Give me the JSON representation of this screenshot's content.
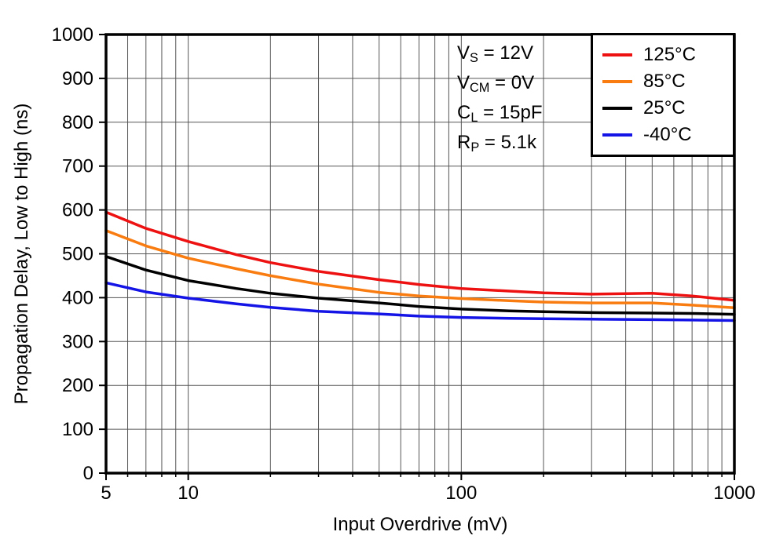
{
  "chart_data": {
    "type": "line",
    "xlabel": "Input Overdrive (mV)",
    "ylabel": "Propagation Delay, Low to High (ns)",
    "x_scale": "log",
    "xlim": [
      5,
      1000
    ],
    "ylim": [
      0,
      1000
    ],
    "y_ticks": [
      0,
      100,
      200,
      300,
      400,
      500,
      600,
      700,
      800,
      900,
      1000
    ],
    "x_major_ticks": [
      5,
      10,
      100,
      1000
    ],
    "x_tick_labels": [
      "5",
      "10",
      "100",
      "1000"
    ],
    "grid": true,
    "legend_position": "top-right",
    "x": [
      5,
      7,
      10,
      15,
      20,
      30,
      50,
      70,
      100,
      150,
      200,
      300,
      500,
      700,
      1000
    ],
    "series": [
      {
        "name": "125°C",
        "color": "#ee1111",
        "values": [
          595,
          558,
          528,
          498,
          480,
          460,
          441,
          430,
          421,
          415,
          411,
          408,
          410,
          404,
          394
        ]
      },
      {
        "name": "85°C",
        "color": "#f97c11",
        "values": [
          553,
          518,
          490,
          466,
          450,
          431,
          412,
          404,
          398,
          393,
          390,
          388,
          388,
          383,
          377
        ]
      },
      {
        "name": "25°C",
        "color": "#000000",
        "values": [
          494,
          463,
          439,
          421,
          410,
          399,
          388,
          380,
          374,
          370,
          368,
          366,
          365,
          364,
          362
        ]
      },
      {
        "name": "-40°C",
        "color": "#1414e6",
        "values": [
          434,
          413,
          399,
          386,
          378,
          369,
          363,
          358,
          355,
          353,
          352,
          351,
          350,
          349,
          348
        ]
      }
    ]
  },
  "annotations": {
    "lines": [
      {
        "base": "V",
        "sub": "S",
        "rest": " = 12V"
      },
      {
        "base": "V",
        "sub": "CM",
        "rest": " = 0V"
      },
      {
        "base": "C",
        "sub": "L",
        "rest": " = 15pF"
      },
      {
        "base": "R",
        "sub": "P",
        "rest": " = 5.1k"
      }
    ]
  }
}
